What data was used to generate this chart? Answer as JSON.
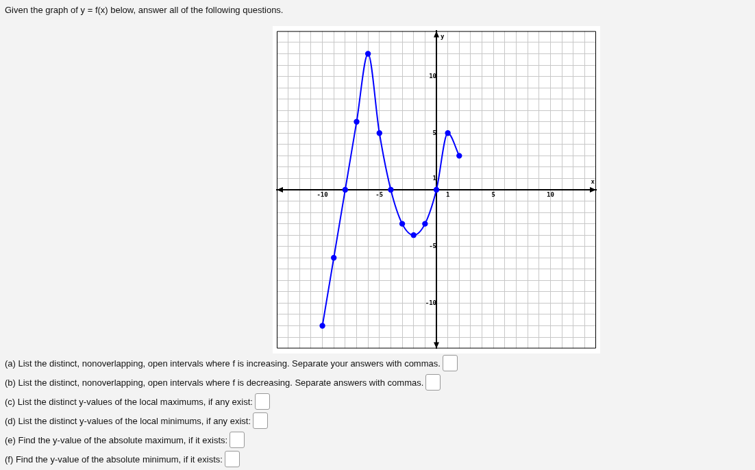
{
  "chart_data": {
    "type": "line",
    "title": "Given the graph of y = f(x) below, answer all of the following questions.",
    "xlabel": "x",
    "ylabel": "y",
    "x": [
      -10,
      -9,
      -8,
      -7,
      -6,
      -5,
      -4,
      -3,
      -2,
      -1,
      0,
      1,
      2
    ],
    "series": [
      {
        "color": "#0000ff",
        "values": [
          -12,
          -6,
          0,
          6,
          12,
          5,
          0,
          -3,
          -4,
          -3,
          0,
          5,
          3
        ]
      }
    ],
    "xlim": [
      -14,
      14
    ],
    "ylim": [
      -14,
      14
    ],
    "xticks": [
      {
        "value": -13,
        "label": null
      },
      {
        "value": -12,
        "label": null
      },
      {
        "value": -11,
        "label": null
      },
      -10,
      {
        "value": -9,
        "label": null
      },
      {
        "value": -8,
        "label": null
      },
      {
        "value": -7,
        "label": null
      },
      {
        "value": -6,
        "label": null
      },
      -5,
      {
        "value": -4,
        "label": null
      },
      {
        "value": -3,
        "label": null
      },
      {
        "value": -2,
        "label": null
      },
      {
        "value": -1,
        "label": null
      },
      {
        "value": 0,
        "label": null
      },
      1,
      {
        "value": 2,
        "label": null
      },
      {
        "value": 3,
        "label": null
      },
      {
        "value": 4,
        "label": null
      },
      5,
      {
        "value": 6,
        "label": null
      },
      {
        "value": 7,
        "label": null
      },
      {
        "value": 8,
        "label": null
      },
      {
        "value": 9,
        "label": null
      },
      10,
      {
        "value": 11,
        "label": null
      },
      {
        "value": 12,
        "label": null
      },
      {
        "value": 13,
        "label": null
      }
    ],
    "yticks": [
      {
        "value": -13,
        "label": null
      },
      {
        "value": -12,
        "label": null
      },
      {
        "value": -11,
        "label": null
      },
      -10,
      {
        "value": -9,
        "label": null
      },
      {
        "value": -8,
        "label": null
      },
      {
        "value": -7,
        "label": null
      },
      {
        "value": -6,
        "label": null
      },
      -5,
      {
        "value": -4,
        "label": null
      },
      {
        "value": -3,
        "label": null
      },
      {
        "value": -2,
        "label": null
      },
      {
        "value": -1,
        "label": null
      },
      {
        "value": 0,
        "label": null
      },
      1,
      {
        "value": 2,
        "label": null
      },
      {
        "value": 3,
        "label": null
      },
      {
        "value": 4,
        "label": null
      },
      5,
      {
        "value": 6,
        "label": null
      },
      {
        "value": 7,
        "label": null
      },
      {
        "value": 8,
        "label": null
      },
      {
        "value": 9,
        "label": null
      },
      10,
      {
        "value": 11,
        "label": null
      },
      {
        "value": 12,
        "label": null
      },
      {
        "value": 13,
        "label": null
      }
    ],
    "grid": true,
    "marker": "circle",
    "line_style": "solid",
    "annotations": [
      "(a) List the distinct, nonoverlapping, open intervals where f is increasing. Separate your answers with commas.",
      "(b) List the distinct, nonoverlapping, open intervals where f is decreasing. Separate answers with commas.",
      "(c) List the distinct y-values of the local maximums, if any exist:",
      "(d) List the distinct y-values of the local minimums, if any exist:",
      "(e) Find the y-value of the absolute maximum, if it exists:",
      "(f) Find the y-value of the absolute minimum, if it exists:"
    ]
  }
}
